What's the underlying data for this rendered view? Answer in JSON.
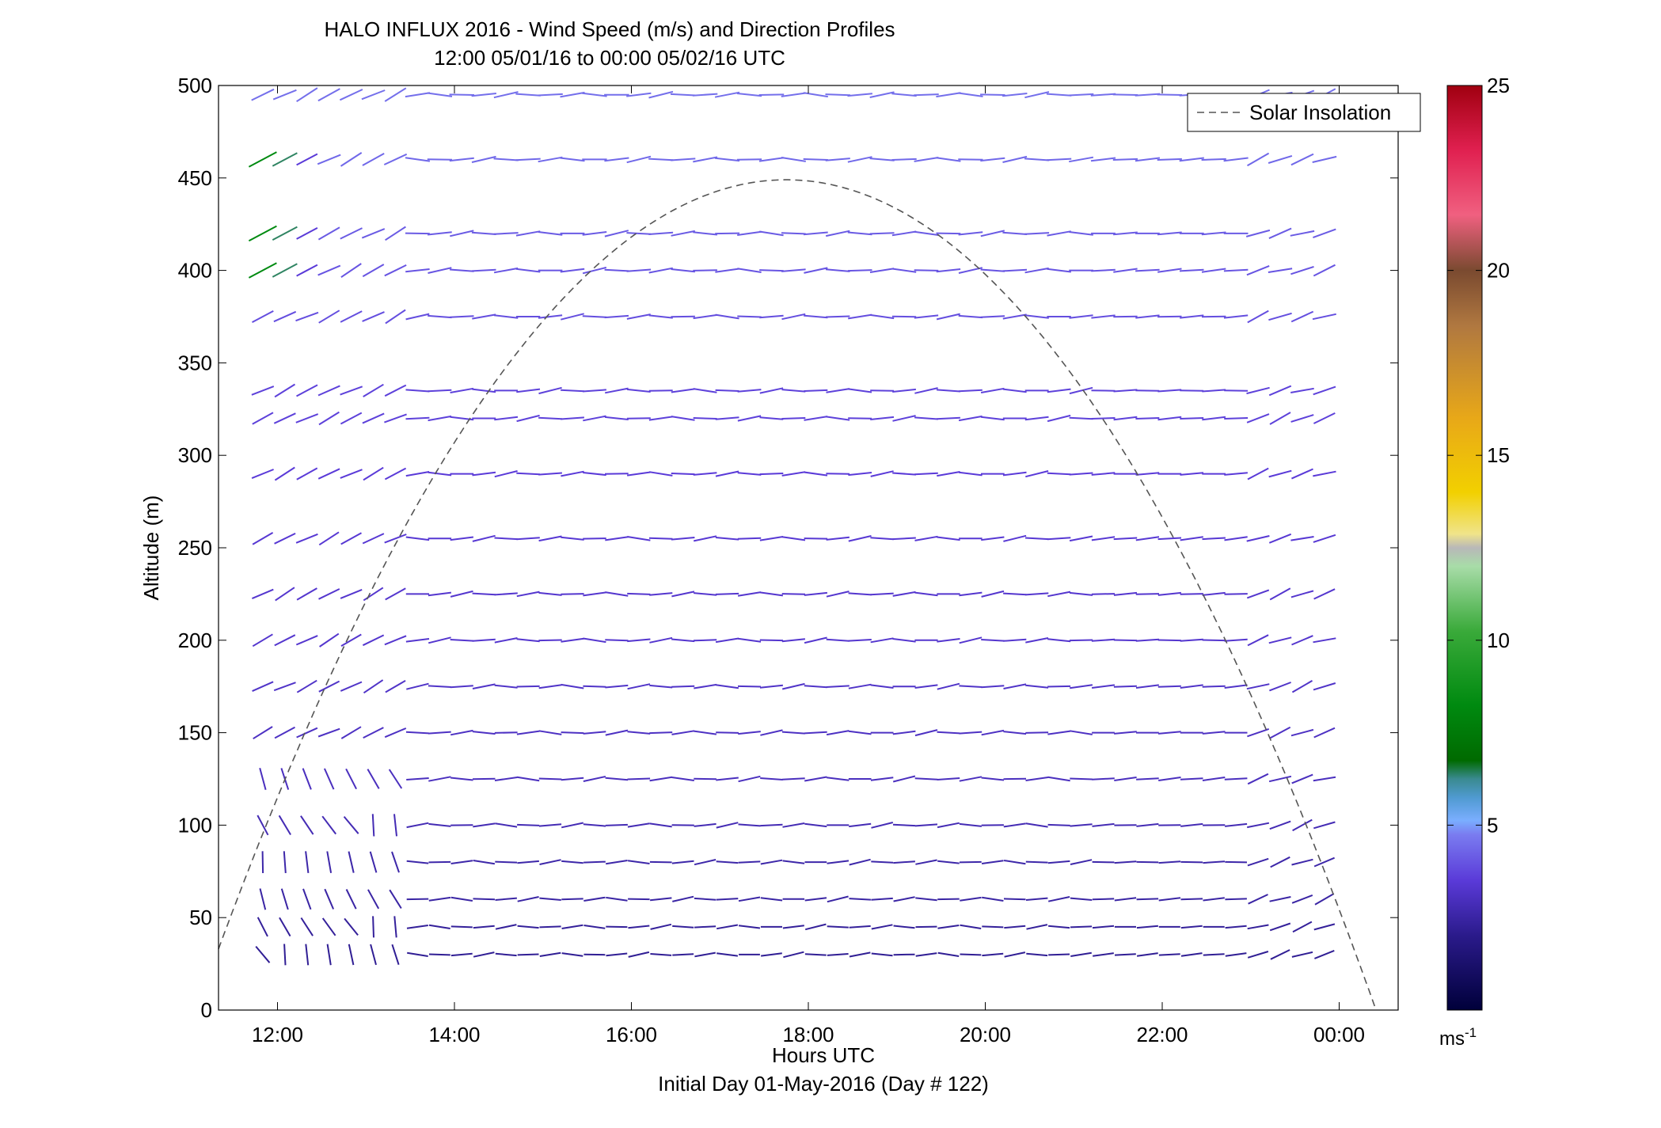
{
  "chart_data": {
    "type": "wind-barb profile",
    "title": "HALO INFLUX 2016 - Wind Speed (m/s) and Direction Profiles",
    "subtitle": "12:00 05/01/16 to 00:00 05/02/16  UTC",
    "xlabel": "Hours UTC",
    "xlabel2": "Initial Day 01-May-2016 (Day # 122)",
    "ylabel": "Altitude (m)",
    "xlim": [
      "11:20",
      "00:40"
    ],
    "ylim": [
      0,
      500
    ],
    "xticks": [
      "12:00",
      "14:00",
      "16:00",
      "18:00",
      "20:00",
      "22:00",
      "00:00"
    ],
    "yticks": [
      0,
      50,
      100,
      150,
      200,
      250,
      300,
      350,
      400,
      450,
      500
    ],
    "legend": {
      "position": "top-right",
      "entries": [
        "Solar Insolation"
      ]
    },
    "colorbar": {
      "range": [
        0,
        25
      ],
      "ticks": [
        5,
        10,
        15,
        20,
        25
      ],
      "unit_base": "ms",
      "unit_sup": "-1"
    },
    "solar_insolation": {
      "style": "dashed",
      "color": "#555555",
      "peak_time": "17:45",
      "peak_altitude": 449
    },
    "wind": {
      "times": [
        "11:50",
        "12:05",
        "12:20",
        "12:35",
        "12:50",
        "13:05",
        "13:20",
        "13:35",
        "13:50",
        "14:05",
        "14:20",
        "14:35",
        "14:50",
        "15:05",
        "15:20",
        "15:35",
        "15:50",
        "16:05",
        "16:20",
        "16:35",
        "16:50",
        "17:05",
        "17:20",
        "17:35",
        "17:50",
        "18:05",
        "18:20",
        "18:35",
        "18:50",
        "19:05",
        "19:20",
        "19:35",
        "19:50",
        "20:05",
        "20:20",
        "20:35",
        "20:50",
        "21:05",
        "21:20",
        "21:35",
        "21:50",
        "22:05",
        "22:20",
        "22:35",
        "22:50",
        "23:05",
        "23:20",
        "23:35",
        "23:50"
      ],
      "altitudes": [
        30,
        45,
        60,
        80,
        100,
        125,
        150,
        175,
        200,
        225,
        255,
        290,
        320,
        335,
        375,
        400,
        420,
        460,
        495
      ],
      "speed_by_altitude": [
        2.2,
        2.3,
        2.5,
        2.6,
        2.8,
        3.0,
        3.1,
        3.2,
        3.3,
        3.3,
        3.4,
        3.5,
        3.6,
        3.6,
        3.8,
        3.9,
        4.0,
        4.2,
        4.3
      ],
      "direction_by_period": [
        {
          "from": "11:50",
          "to": "13:35",
          "description": "variable, steeply tilted at low levels; strong NW at 380-460 m (up to ~8 m/s)"
        },
        {
          "from": "13:35",
          "to": "21:20",
          "description": "near-westerly, gently tilted"
        },
        {
          "from": "21:20",
          "to": "23:50",
          "description": "westerly, tilting upward late"
        }
      ]
    }
  }
}
